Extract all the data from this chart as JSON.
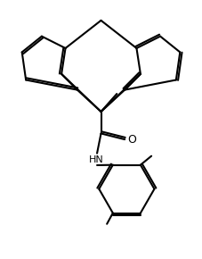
{
  "bg_color": "#ffffff",
  "line_color": "#000000",
  "line_width": 1.5,
  "fig_width": 2.27,
  "fig_height": 2.9,
  "dpi": 100,
  "xlim": [
    0,
    10
  ],
  "ylim": [
    0,
    13
  ]
}
